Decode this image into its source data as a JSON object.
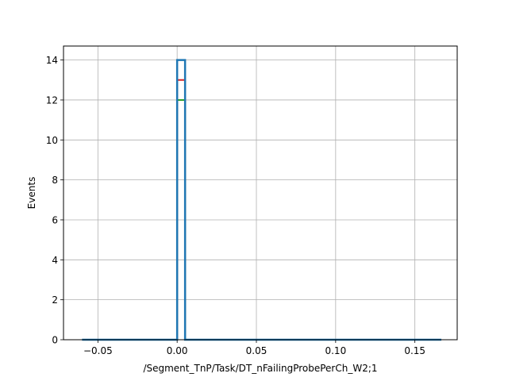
{
  "chart_data": {
    "type": "step",
    "title": "",
    "xlabel": "/Segment_TnP/Task/DT_nFailingProbePerCh_W2;1",
    "ylabel": "Events",
    "xlim": [
      -0.0717,
      0.1767
    ],
    "ylim": [
      0,
      14.7
    ],
    "x_ticks": [
      -0.05,
      0.0,
      0.05,
      0.1,
      0.15
    ],
    "x_tick_labels": [
      "−0.05",
      "0.00",
      "0.05",
      "0.10",
      "0.15"
    ],
    "y_ticks": [
      0,
      2,
      4,
      6,
      8,
      10,
      12,
      14
    ],
    "y_tick_labels": [
      "0",
      "2",
      "4",
      "6",
      "8",
      "10",
      "12",
      "14"
    ],
    "grid": true,
    "legend": "none",
    "series": [
      {
        "color": "#1f77b4",
        "line_width": 2.5,
        "edges": [
          -0.06,
          0.0,
          0.005,
          0.1667
        ],
        "counts": [
          0,
          14,
          0
        ]
      },
      {
        "color": "#d62728",
        "line_width": 2,
        "edges": [
          0.0,
          0.005
        ],
        "counts": [
          13
        ]
      },
      {
        "color": "#2ca02c",
        "line_width": 2,
        "edges": [
          0.0,
          0.005
        ],
        "counts": [
          12
        ]
      }
    ]
  }
}
